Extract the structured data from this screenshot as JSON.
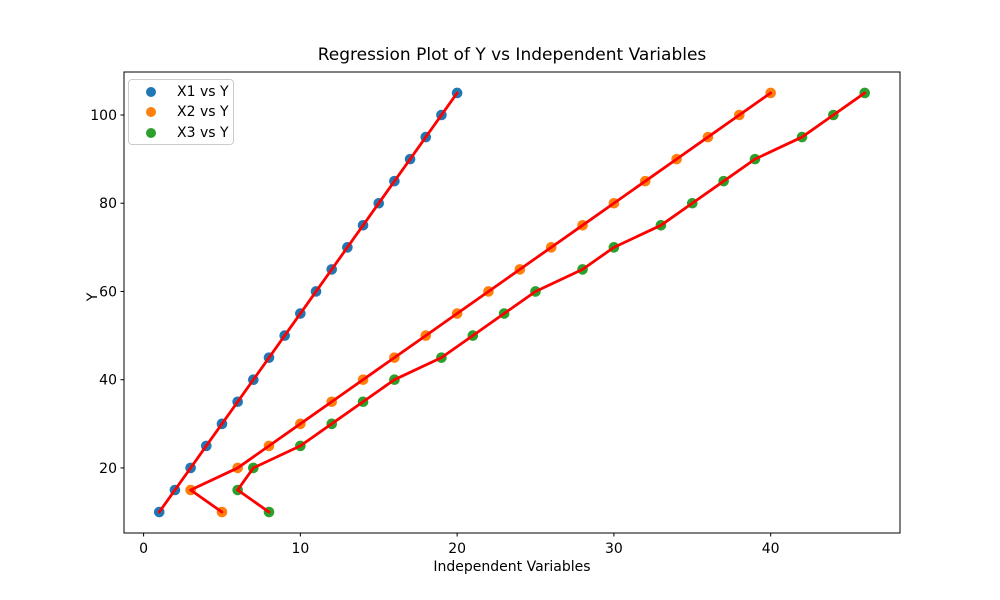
{
  "chart_data": {
    "type": "scatter",
    "title": "Regression Plot of Y vs Independent Variables",
    "xlabel": "Independent Variables",
    "ylabel": "Y",
    "xlim": [
      -1.25,
      48.25
    ],
    "ylim": [
      5.25,
      109.75
    ],
    "x_ticks": [
      0,
      10,
      20,
      30,
      40
    ],
    "y_ticks": [
      20,
      40,
      60,
      80,
      100
    ],
    "grid": false,
    "legend_position": "upper left",
    "regression_line_color": "#ff0000",
    "y": [
      10,
      15,
      20,
      25,
      30,
      35,
      40,
      45,
      50,
      55,
      60,
      65,
      70,
      75,
      80,
      85,
      90,
      95,
      100,
      105
    ],
    "series": [
      {
        "name": "X1 vs Y",
        "color": "#1f77b4",
        "x": [
          1,
          2,
          3,
          4,
          5,
          6,
          7,
          8,
          9,
          10,
          11,
          12,
          13,
          14,
          15,
          16,
          17,
          18,
          19,
          20
        ]
      },
      {
        "name": "X2 vs Y",
        "color": "#ff7f0e",
        "x": [
          5,
          3,
          6,
          8,
          10,
          12,
          14,
          16,
          18,
          20,
          22,
          24,
          26,
          28,
          30,
          32,
          34,
          36,
          38,
          40
        ]
      },
      {
        "name": "X3 vs Y",
        "color": "#2ca02c",
        "x": [
          8,
          6,
          7,
          10,
          12,
          14,
          16,
          19,
          21,
          23,
          25,
          28,
          30,
          33,
          35,
          37,
          39,
          42,
          44,
          46
        ]
      }
    ]
  }
}
